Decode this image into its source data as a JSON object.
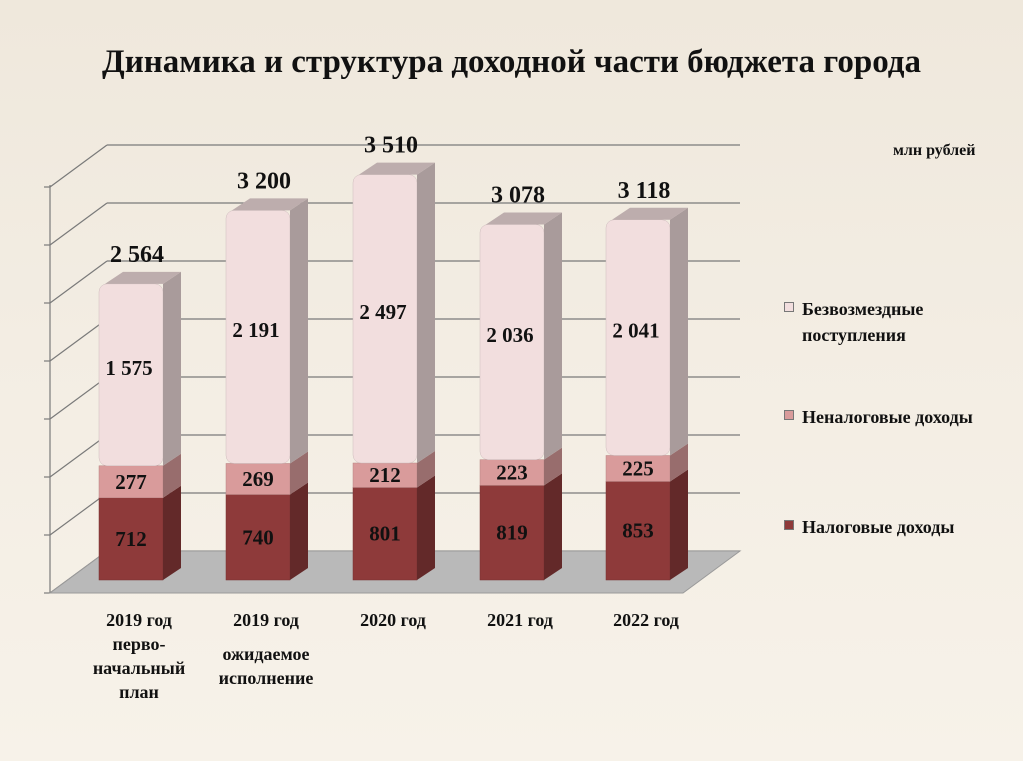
{
  "title": "Динамика и структура доходной части бюджета города",
  "unit": "млн рублей",
  "colors": {
    "tax": "#8e3a3a",
    "nontax": "#d99b9b",
    "grants": "#f2dede"
  },
  "chart_data": {
    "type": "bar",
    "stacked": true,
    "categories": [
      {
        "line1": "2019 год",
        "line2": "перво-\nначальный\nплан"
      },
      {
        "line1": "2019 год",
        "line2": "ожидаемое\nисполнение"
      },
      {
        "line1": "2020 год",
        "line2": ""
      },
      {
        "line1": "2021 год",
        "line2": ""
      },
      {
        "line1": "2022 год",
        "line2": ""
      }
    ],
    "series": [
      {
        "name": "Налоговые доходы",
        "values": [
          712,
          740,
          801,
          819,
          853
        ],
        "labels": [
          "712",
          "740",
          "801",
          "819",
          "853"
        ]
      },
      {
        "name": "Неналоговые доходы",
        "values": [
          277,
          269,
          212,
          223,
          225
        ],
        "labels": [
          "277",
          "269",
          "212",
          "223",
          "225"
        ]
      },
      {
        "name": "Безвозмездные поступления",
        "values": [
          1575,
          2191,
          2497,
          2036,
          2041
        ],
        "labels": [
          "1 575",
          "2 191",
          "2 497",
          "2 036",
          "2 041"
        ]
      }
    ],
    "totals": [
      2564,
      3200,
      3510,
      3078,
      3118
    ],
    "total_labels": [
      "2 564",
      "3 200",
      "3 510",
      "3 078",
      "3 118"
    ],
    "ylim": [
      0,
      3500
    ],
    "grid": true,
    "legend_position": "right"
  }
}
